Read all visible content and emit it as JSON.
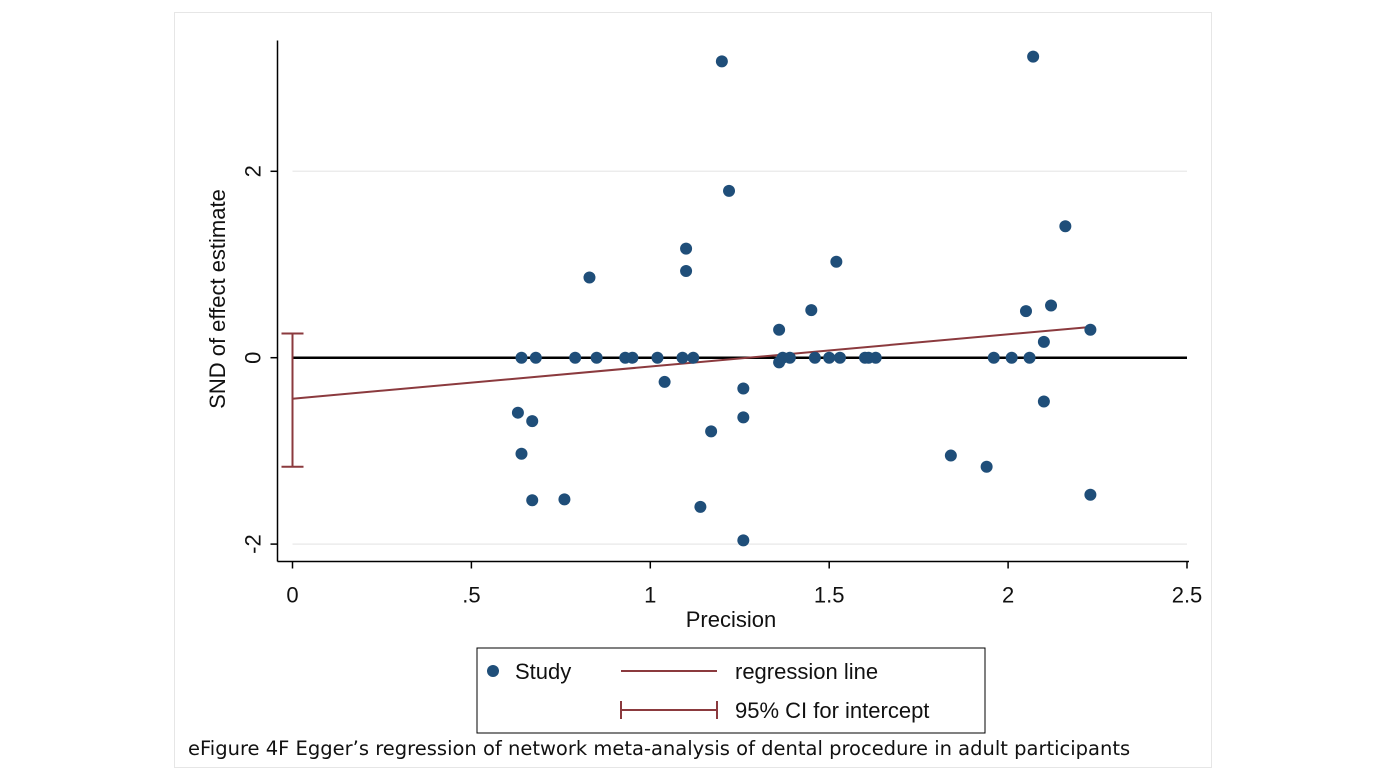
{
  "caption": "eFigure 4F Egger’s regression of network meta-analysis of dental procedure in adult participants",
  "chart_data": {
    "type": "scatter",
    "title": "",
    "xlabel": "Precision",
    "ylabel": "SND of effect estimate",
    "xlim": [
      0,
      2.5
    ],
    "ylim": [
      -2,
      3.4
    ],
    "x_ticks": [
      0,
      0.5,
      1,
      1.5,
      2,
      2.5
    ],
    "x_tick_labels": [
      "0",
      ".5",
      "1",
      "1.5",
      "2",
      "2.5"
    ],
    "y_ticks": [
      -2,
      0,
      2
    ],
    "y_tick_labels": [
      "-2",
      "0",
      "2"
    ],
    "grid": "horizontal",
    "legend_position": "bottom",
    "colors": {
      "points": "#1f4e79",
      "regression": "#8b3a3e",
      "ci": "#8b3a3e",
      "zero_line": "#000000",
      "grid": "#ececec"
    },
    "series": [
      {
        "name": "Study",
        "kind": "points",
        "points": [
          [
            0.63,
            -0.59
          ],
          [
            0.64,
            -1.03
          ],
          [
            0.64,
            0
          ],
          [
            0.68,
            0
          ],
          [
            0.67,
            -0.68
          ],
          [
            0.67,
            -1.53
          ],
          [
            0.76,
            -1.52
          ],
          [
            0.79,
            0
          ],
          [
            0.83,
            0.86
          ],
          [
            0.85,
            0
          ],
          [
            0.93,
            0
          ],
          [
            0.95,
            0
          ],
          [
            1.02,
            0
          ],
          [
            1.04,
            -0.26
          ],
          [
            1.1,
            1.17
          ],
          [
            1.1,
            0.93
          ],
          [
            1.09,
            0
          ],
          [
            1.12,
            0
          ],
          [
            1.14,
            -1.6
          ],
          [
            1.17,
            -0.79
          ],
          [
            1.2,
            3.18
          ],
          [
            1.22,
            1.79
          ],
          [
            1.26,
            -0.64
          ],
          [
            1.26,
            -0.33
          ],
          [
            1.26,
            -1.96
          ],
          [
            1.36,
            0.3
          ],
          [
            1.36,
            -0.05
          ],
          [
            1.37,
            0
          ],
          [
            1.39,
            0
          ],
          [
            1.45,
            0.51
          ],
          [
            1.46,
            0
          ],
          [
            1.5,
            0
          ],
          [
            1.52,
            1.03
          ],
          [
            1.53,
            0
          ],
          [
            1.6,
            0
          ],
          [
            1.61,
            0
          ],
          [
            1.63,
            0
          ],
          [
            1.84,
            -1.05
          ],
          [
            1.94,
            -1.17
          ],
          [
            1.96,
            0
          ],
          [
            2.01,
            0
          ],
          [
            2.05,
            0.5
          ],
          [
            2.06,
            0
          ],
          [
            2.07,
            3.23
          ],
          [
            2.1,
            -0.47
          ],
          [
            2.1,
            0.17
          ],
          [
            2.12,
            0.56
          ],
          [
            2.16,
            1.41
          ],
          [
            2.23,
            -1.47
          ],
          [
            2.23,
            0.3
          ]
        ]
      },
      {
        "name": "regression line",
        "kind": "line",
        "points": [
          [
            0,
            -0.44
          ],
          [
            2.23,
            0.33
          ]
        ]
      },
      {
        "name": "95% CI for intercept",
        "kind": "ci",
        "x": 0,
        "lower": -1.17,
        "upper": 0.26
      }
    ]
  }
}
